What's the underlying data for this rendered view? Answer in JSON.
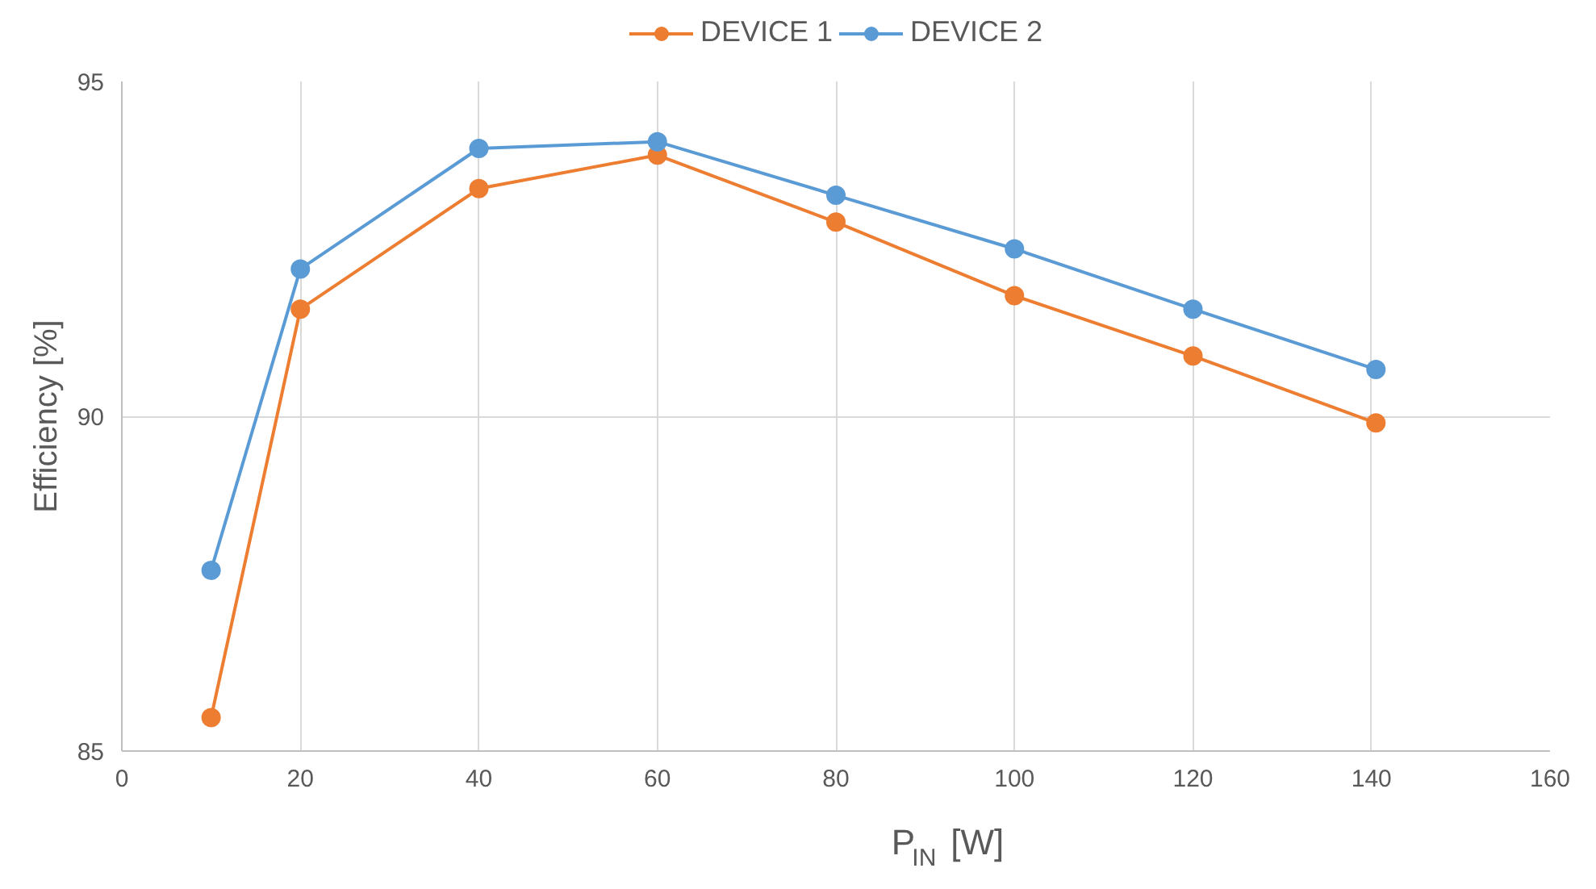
{
  "chart_data": {
    "type": "line",
    "xlabel": "P$_{IN}$ [W]",
    "ylabel": "Efficiency [%]",
    "xlim": [
      0,
      160
    ],
    "xticks": [
      0,
      20,
      40,
      60,
      80,
      100,
      120,
      140,
      160
    ],
    "ylim": [
      85,
      95
    ],
    "yticks": [
      85,
      90,
      95
    ],
    "grid": true,
    "legend": "top",
    "marker": "circle",
    "line_style": "solid",
    "series": [
      {
        "name": "DEVICE 1",
        "color": "#ed7d31",
        "x": [
          10,
          20,
          40,
          60,
          80,
          100,
          120,
          140.5
        ],
        "values": [
          85.5,
          91.6,
          93.4,
          93.9,
          92.9,
          91.8,
          90.9,
          89.9
        ]
      },
      {
        "name": "DEVICE 2",
        "color": "#5b9bd5",
        "x": [
          10,
          20,
          40,
          60,
          80,
          100,
          120,
          140.5
        ],
        "values": [
          87.7,
          92.2,
          94.0,
          94.1,
          93.3,
          92.5,
          91.6,
          90.7
        ]
      }
    ]
  }
}
